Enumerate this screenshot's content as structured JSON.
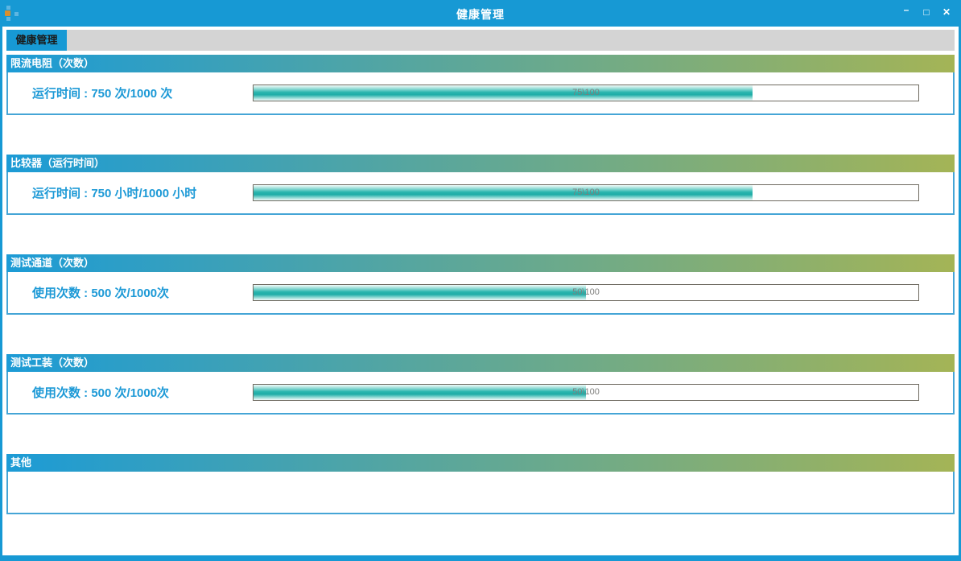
{
  "window": {
    "title": "健康管理",
    "icon": "app-hierarchy-icon",
    "controls": {
      "minimize": "–",
      "maximize": "□",
      "close": "✕"
    }
  },
  "tab_bar": {
    "tabs": [
      {
        "label": "健康管理",
        "active": true
      }
    ]
  },
  "sections": [
    {
      "header": "限流电阻（次数）",
      "label": "运行时间 : 750 次/1000 次",
      "progress": {
        "text": "75\\100",
        "percent": 75
      }
    },
    {
      "header": "比较器（运行时间）",
      "label": "运行时间 : 750 小时/1000 小时",
      "progress": {
        "text": "75\\100",
        "percent": 75
      }
    },
    {
      "header": "测试通道（次数）",
      "label": "使用次数 : 500 次/1000次",
      "progress": {
        "text": "50\\100",
        "percent": 50
      }
    },
    {
      "header": "测试工装（次数）",
      "label": "使用次数 : 500 次/1000次",
      "progress": {
        "text": "50\\100",
        "percent": 50
      }
    },
    {
      "header": "其他"
    }
  ],
  "colors": {
    "accent_blue": "#1799d4",
    "header_gradient_start": "#1c9bd6",
    "header_gradient_end": "#a4b456",
    "section_border": "#45a5d6",
    "progress_fill_teal": "#1fb0ab",
    "progress_border": "#6f6b61",
    "tab_strip_gray": "#d4d4d4",
    "label_blue": "#1c99d6"
  }
}
